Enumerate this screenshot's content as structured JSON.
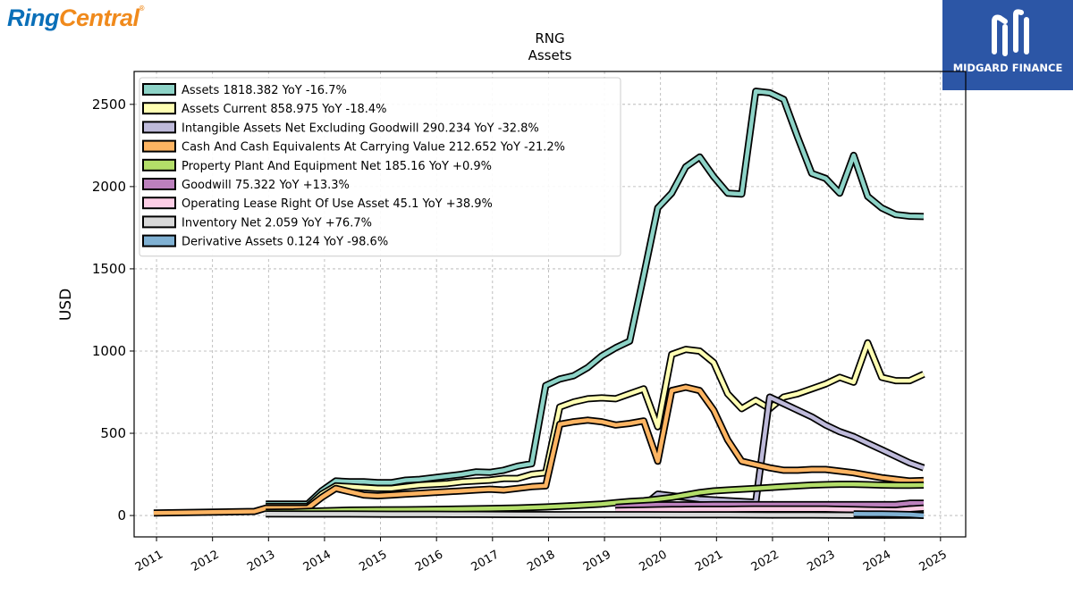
{
  "brand": {
    "left_logo_ring": "Ring",
    "left_logo_central": "Central",
    "left_logo_reg": "®",
    "right_logo_text": "MIDGARD FINANCE"
  },
  "chart_data": {
    "type": "line",
    "title": "RNG",
    "subtitle": "Assets",
    "ylabel": "USD",
    "xlabel": "",
    "xlim": [
      2010.6,
      2025.45
    ],
    "ylim": [
      -130,
      2700
    ],
    "yticks": [
      0,
      500,
      1000,
      1500,
      2000,
      2500
    ],
    "xticks": [
      "2011",
      "2012",
      "2013",
      "2014",
      "2015",
      "2016",
      "2017",
      "2018",
      "2019",
      "2020",
      "2021",
      "2022",
      "2023",
      "2024",
      "2025"
    ],
    "grid": true,
    "legend_position": "top-left",
    "series": [
      {
        "name": "Assets",
        "legend": "Assets  1818.382 YoY -16.7%",
        "color": "#8dd3c7",
        "x": [
          2012.95,
          2013.7,
          2013.95,
          2014.2,
          2014.45,
          2014.7,
          2014.95,
          2015.2,
          2015.45,
          2015.7,
          2015.95,
          2016.2,
          2016.45,
          2016.7,
          2016.95,
          2017.2,
          2017.45,
          2017.7,
          2017.95,
          2018.2,
          2018.45,
          2018.7,
          2018.95,
          2019.2,
          2019.45,
          2019.7,
          2019.95,
          2020.2,
          2020.45,
          2020.7,
          2020.95,
          2021.2,
          2021.45,
          2021.7,
          2021.95,
          2022.2,
          2022.45,
          2022.7,
          2022.95,
          2023.2,
          2023.45,
          2023.7,
          2023.95,
          2024.2,
          2024.45,
          2024.7
        ],
        "y": [
          70,
          70,
          150,
          210,
          205,
          205,
          200,
          200,
          215,
          220,
          230,
          240,
          250,
          265,
          262,
          275,
          300,
          315,
          790,
          830,
          850,
          900,
          970,
          1020,
          1060,
          1460,
          1870,
          1960,
          2120,
          2180,
          2060,
          1960,
          1955,
          2580,
          2570,
          2530,
          2300,
          2080,
          2050,
          1960,
          2190,
          1940,
          1870,
          1830,
          1820,
          1818
        ]
      },
      {
        "name": "Assets Current",
        "legend": "Assets Current  858.975 YoY -18.4%",
        "color": "#ffffb3",
        "x": [
          2012.95,
          2013.7,
          2013.95,
          2014.2,
          2014.45,
          2014.7,
          2014.95,
          2015.2,
          2015.45,
          2015.7,
          2015.95,
          2016.2,
          2016.45,
          2016.7,
          2016.95,
          2017.2,
          2017.45,
          2017.7,
          2017.95,
          2018.2,
          2018.45,
          2018.7,
          2018.95,
          2019.2,
          2019.45,
          2019.7,
          2019.95,
          2020.2,
          2020.45,
          2020.7,
          2020.95,
          2021.2,
          2021.45,
          2021.7,
          2021.95,
          2022.2,
          2022.45,
          2022.7,
          2022.95,
          2023.2,
          2023.45,
          2023.7,
          2023.95,
          2024.2,
          2024.45,
          2024.7
        ],
        "y": [
          55,
          55,
          130,
          180,
          175,
          170,
          165,
          165,
          175,
          185,
          190,
          195,
          205,
          210,
          215,
          225,
          225,
          250,
          260,
          660,
          690,
          710,
          715,
          710,
          740,
          770,
          540,
          980,
          1010,
          1000,
          930,
          740,
          650,
          700,
          650,
          720,
          740,
          770,
          800,
          840,
          810,
          1050,
          840,
          820,
          820,
          859
        ]
      },
      {
        "name": "Intangible Assets Net Excluding Goodwill",
        "legend": "Intangible Assets Net Excluding Goodwill  290.234 YoY -32.8%",
        "color": "#bebada",
        "x": [
          2019.2,
          2019.45,
          2019.7,
          2019.95,
          2020.2,
          2020.45,
          2020.7,
          2020.95,
          2021.2,
          2021.45,
          2021.7,
          2021.95,
          2022.2,
          2022.45,
          2022.7,
          2022.95,
          2023.2,
          2023.45,
          2023.7,
          2023.95,
          2024.2,
          2024.45,
          2024.7
        ],
        "y": [
          30,
          50,
          60,
          130,
          120,
          110,
          100,
          95,
          90,
          85,
          80,
          720,
          680,
          640,
          600,
          550,
          510,
          480,
          440,
          400,
          360,
          320,
          290
        ]
      },
      {
        "name": "Cash And Cash Equivalents At Carrying Value",
        "legend": "Cash And Cash Equivalents At Carrying Value  212.652 YoY -21.2%",
        "color": "#fdb462",
        "x": [
          2010.95,
          2012.75,
          2012.95,
          2013.7,
          2013.95,
          2014.2,
          2014.45,
          2014.7,
          2014.95,
          2015.2,
          2015.45,
          2015.7,
          2015.95,
          2016.2,
          2016.45,
          2016.7,
          2016.95,
          2017.2,
          2017.45,
          2017.7,
          2017.95,
          2018.2,
          2018.45,
          2018.7,
          2018.95,
          2019.2,
          2019.45,
          2019.7,
          2019.95,
          2020.2,
          2020.45,
          2020.7,
          2020.95,
          2021.2,
          2021.45,
          2021.7,
          2021.95,
          2022.2,
          2022.45,
          2022.7,
          2022.95,
          2023.2,
          2023.45,
          2023.7,
          2023.95,
          2024.2,
          2024.45,
          2024.7
        ],
        "y": [
          15,
          25,
          45,
          45,
          110,
          165,
          145,
          125,
          120,
          125,
          130,
          135,
          140,
          145,
          150,
          155,
          160,
          155,
          165,
          175,
          180,
          555,
          570,
          580,
          570,
          550,
          560,
          575,
          330,
          760,
          780,
          760,
          640,
          460,
          330,
          310,
          290,
          275,
          275,
          280,
          280,
          270,
          260,
          245,
          230,
          220,
          210,
          213
        ]
      },
      {
        "name": "Property Plant And Equipment Net",
        "legend": "Property Plant And Equipment Net  185.16 YoY +0.9%",
        "color": "#b3de69",
        "x": [
          2012.95,
          2013.45,
          2013.95,
          2014.45,
          2014.95,
          2015.45,
          2015.95,
          2016.45,
          2016.95,
          2017.45,
          2017.95,
          2018.45,
          2018.95,
          2019.2,
          2019.45,
          2019.7,
          2019.95,
          2020.2,
          2020.45,
          2020.7,
          2020.95,
          2021.2,
          2021.45,
          2021.7,
          2021.95,
          2022.2,
          2022.45,
          2022.7,
          2022.95,
          2023.2,
          2023.45,
          2023.7,
          2023.95,
          2024.2,
          2024.45,
          2024.7
        ],
        "y": [
          20,
          22,
          28,
          33,
          34,
          35,
          37,
          40,
          43,
          46,
          52,
          60,
          70,
          78,
          85,
          90,
          100,
          110,
          125,
          140,
          150,
          155,
          160,
          165,
          170,
          175,
          180,
          185,
          188,
          190,
          190,
          188,
          185,
          184,
          184,
          185
        ]
      },
      {
        "name": "Goodwill",
        "legend": "Goodwill  75.322 YoY +13.3%",
        "color": "#bc80bd",
        "x": [
          2019.2,
          2019.45,
          2019.7,
          2019.95,
          2020.2,
          2020.45,
          2020.7,
          2020.95,
          2021.2,
          2021.45,
          2021.7,
          2021.95,
          2022.2,
          2022.45,
          2022.7,
          2022.95,
          2023.2,
          2023.45,
          2023.7,
          2023.95,
          2024.2,
          2024.45,
          2024.7
        ],
        "y": [
          50,
          55,
          60,
          65,
          65,
          65,
          65,
          66,
          66,
          66,
          66,
          66,
          66,
          66,
          66,
          66,
          66,
          66,
          66,
          66,
          66,
          75,
          75
        ]
      },
      {
        "name": "Operating Lease Right Of Use Asset",
        "legend": "Operating Lease Right Of Use Asset  45.1 YoY +38.9%",
        "color": "#fccde5",
        "x": [
          2019.2,
          2019.45,
          2019.7,
          2019.95,
          2020.2,
          2020.45,
          2020.7,
          2020.95,
          2021.2,
          2021.45,
          2021.7,
          2021.95,
          2022.2,
          2022.45,
          2022.7,
          2022.95,
          2023.2,
          2023.45,
          2023.7,
          2023.95,
          2024.2,
          2024.45,
          2024.7
        ],
        "y": [
          30,
          32,
          33,
          35,
          36,
          37,
          38,
          38,
          38,
          39,
          40,
          40,
          40,
          40,
          40,
          40,
          38,
          36,
          34,
          33,
          32,
          40,
          45
        ]
      },
      {
        "name": "Inventory Net",
        "legend": "Inventory Net  2.059 YoY +76.7%",
        "color": "#d9d9d9",
        "x": [
          2012.95,
          2013.7,
          2014.45,
          2015.2,
          2015.95,
          2016.7,
          2017.45,
          2018.2,
          2018.95,
          2019.7,
          2020.45,
          2021.2,
          2021.95,
          2022.7,
          2023.45,
          2024.2,
          2024.7
        ],
        "y": [
          10,
          9,
          9,
          8,
          8,
          7,
          6,
          5,
          5,
          5,
          4,
          4,
          3,
          3,
          2,
          2,
          2
        ]
      },
      {
        "name": "Derivative Assets",
        "legend": "Derivative Assets  0.124 YoY -98.6%",
        "color": "#80b1d3",
        "x": [
          2023.45,
          2023.7,
          2023.95,
          2024.2,
          2024.45,
          2024.7
        ],
        "y": [
          10,
          9,
          9,
          8,
          6,
          0.124
        ]
      }
    ]
  }
}
